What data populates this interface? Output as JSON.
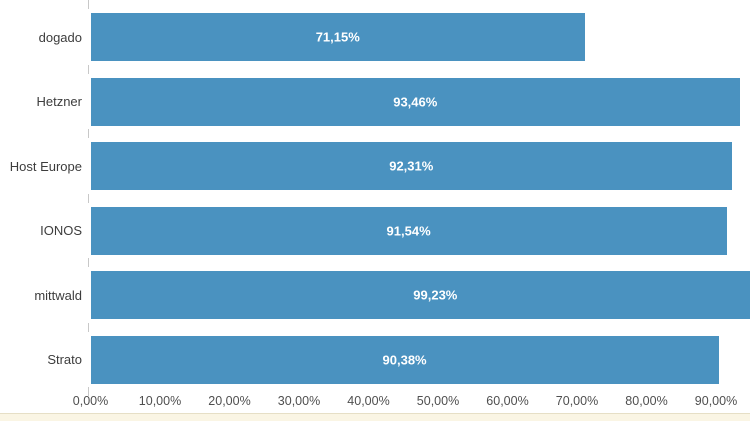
{
  "chart_data": {
    "type": "bar",
    "orientation": "horizontal",
    "title": "",
    "categories": [
      "dogado",
      "Hetzner",
      "Host Europe",
      "IONOS",
      "mittwald",
      "Strato"
    ],
    "values": [
      71.15,
      93.46,
      92.31,
      91.54,
      99.23,
      90.38
    ],
    "value_labels": [
      "71,15%",
      "93,46%",
      "92,31%",
      "91,54%",
      "99,23%",
      "90,38%"
    ],
    "x_tick_values": [
      0,
      10,
      20,
      30,
      40,
      50,
      60,
      70,
      80,
      90
    ],
    "x_tick_labels": [
      "0,00%",
      "10,00%",
      "20,00%",
      "30,00%",
      "40,00%",
      "50,00%",
      "60,00%",
      "70,00%",
      "80,00%",
      "90,00%"
    ],
    "xlim": [
      0,
      94.9
    ],
    "grid": false,
    "legend": "none",
    "bar_color": "#4a92c0",
    "value_label_color": "#ffffff",
    "category_label_color": "#3d3d3d",
    "axis_label_color": "#4f4f4f",
    "tick_color": "#c8c8c8"
  },
  "footer": {
    "strip_color": "#faf5e4",
    "strip_border_color": "#e6dfc6"
  }
}
